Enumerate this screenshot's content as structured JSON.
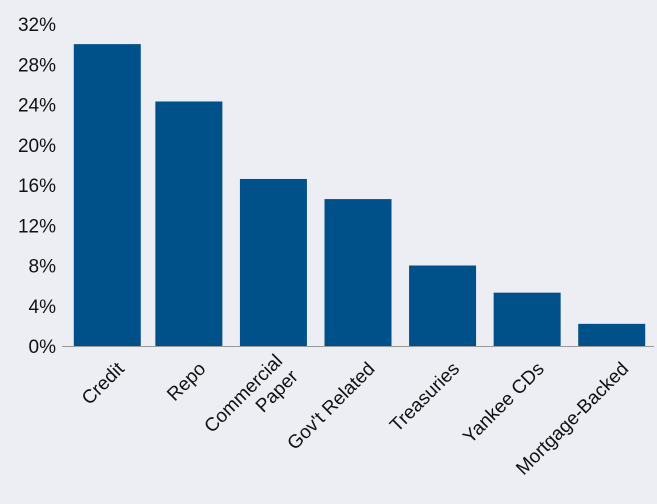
{
  "chart_data": {
    "type": "bar",
    "title": "",
    "xlabel": "",
    "ylabel": "",
    "categories": [
      [
        "Credit"
      ],
      [
        "Repo"
      ],
      [
        "Commercial",
        "Paper"
      ],
      [
        "Gov't Related"
      ],
      [
        "Treasuries"
      ],
      [
        "Yankee CDs"
      ],
      [
        "Mortgage-Backed"
      ]
    ],
    "values": [
      30,
      24.3,
      16.6,
      14.6,
      8,
      5.3,
      2.2
    ],
    "ylim": [
      0,
      32
    ],
    "yticks": [
      "0%",
      "4%",
      "8%",
      "12%",
      "16%",
      "20%",
      "24%",
      "28%",
      "32%"
    ],
    "y_unit": "%",
    "grid": false,
    "legend": "none",
    "bar_color": "#00508a",
    "axis_color": "#999999"
  }
}
